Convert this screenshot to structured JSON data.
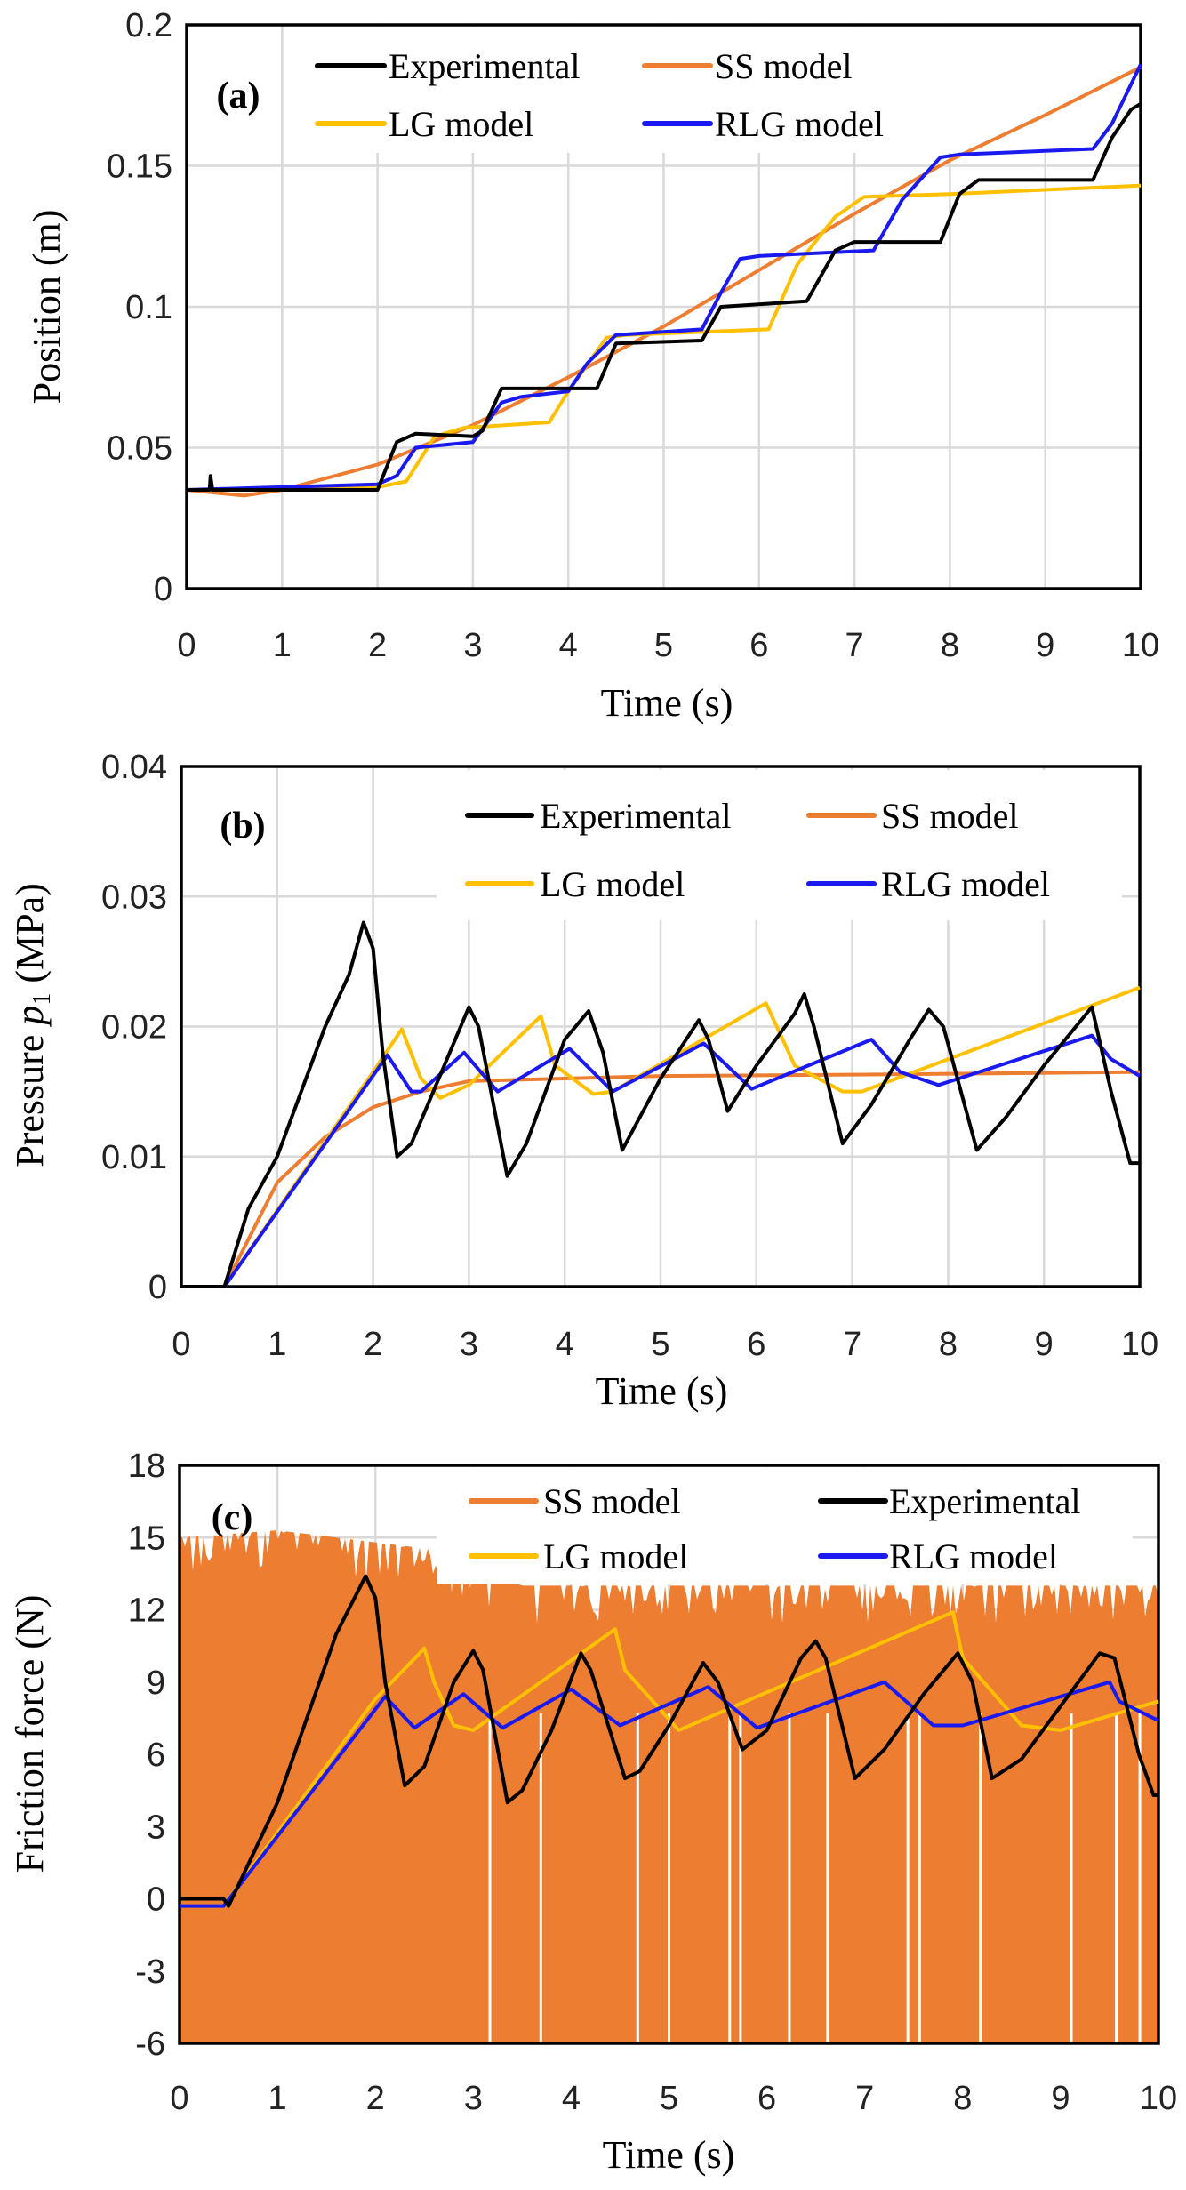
{
  "colors": {
    "Experimental": "#000000",
    "SS model": "#ED7D31",
    "LG model": "#FFC000",
    "RLG model": "#1A1AF0",
    "grid": "#D9D9D9"
  },
  "chart_data": [
    {
      "type": "line",
      "panel_label": "(a)",
      "xlabel": "Time (s)",
      "ylabel": "Position (m)",
      "xlim": [
        0,
        10
      ],
      "ylim": [
        0,
        0.2
      ],
      "xticks": [
        0,
        1,
        2,
        3,
        4,
        5,
        6,
        7,
        8,
        9,
        10
      ],
      "yticks": [
        "0",
        "0.05",
        "0.1",
        "0.15",
        "0.2"
      ],
      "grid": true,
      "legend": [
        "Experimental",
        "SS model",
        "LG model",
        "RLG model"
      ],
      "legend_placement": "top",
      "series": [
        {
          "name": "Experimental",
          "x": [
            0,
            0.24,
            0.25,
            0.27,
            2.0,
            2.2,
            2.4,
            3.0,
            3.1,
            3.3,
            4.3,
            4.5,
            5.4,
            5.6,
            6.5,
            6.8,
            7.0,
            7.9,
            8.1,
            8.3,
            9.5,
            9.7,
            9.9,
            10
          ],
          "y": [
            0.035,
            0.035,
            0.04,
            0.035,
            0.035,
            0.052,
            0.055,
            0.054,
            0.056,
            0.071,
            0.071,
            0.087,
            0.088,
            0.1,
            0.102,
            0.12,
            0.123,
            0.123,
            0.14,
            0.145,
            0.145,
            0.16,
            0.17,
            0.172
          ]
        },
        {
          "name": "SS model",
          "x": [
            0,
            0.6,
            1,
            2,
            3,
            4,
            5,
            6,
            7,
            8,
            9,
            10
          ],
          "y": [
            0.035,
            0.033,
            0.035,
            0.044,
            0.058,
            0.075,
            0.093,
            0.113,
            0.133,
            0.152,
            0.168,
            0.185
          ]
        },
        {
          "name": "LG model",
          "x": [
            0,
            2,
            2.3,
            2.6,
            2.9,
            3.8,
            4.0,
            4.4,
            4.6,
            6.1,
            6.4,
            6.8,
            7.1,
            8,
            10
          ],
          "y": [
            0.035,
            0.036,
            0.038,
            0.054,
            0.057,
            0.059,
            0.07,
            0.089,
            0.09,
            0.092,
            0.115,
            0.132,
            0.139,
            0.14,
            0.143
          ]
        },
        {
          "name": "RLG model",
          "x": [
            0,
            2.0,
            2.2,
            2.4,
            3.0,
            3.3,
            3.5,
            4.0,
            4.2,
            4.5,
            5.4,
            5.6,
            5.8,
            6.0,
            7.2,
            7.5,
            7.9,
            8.1,
            9.5,
            9.7,
            10
          ],
          "y": [
            0.035,
            0.037,
            0.04,
            0.05,
            0.052,
            0.066,
            0.068,
            0.07,
            0.08,
            0.09,
            0.092,
            0.105,
            0.117,
            0.118,
            0.12,
            0.138,
            0.153,
            0.154,
            0.156,
            0.165,
            0.186
          ]
        }
      ]
    },
    {
      "type": "line",
      "panel_label": "(b)",
      "xlabel": "Time (s)",
      "ylabel_parts": [
        "Pressure ",
        "p",
        "1",
        " (MPa)"
      ],
      "xlim": [
        0,
        10
      ],
      "ylim": [
        0,
        0.04
      ],
      "xticks": [
        0,
        1,
        2,
        3,
        4,
        5,
        6,
        7,
        8,
        9,
        10
      ],
      "yticks": [
        "0",
        "0.01",
        "0.02",
        "0.03",
        "0.04"
      ],
      "grid": true,
      "legend": [
        "Experimental",
        "SS model",
        "LG model",
        "RLG model"
      ],
      "legend_placement": "top-right",
      "series": [
        {
          "name": "Experimental",
          "x": [
            0,
            0.45,
            0.7,
            1,
            1.2,
            1.5,
            1.75,
            1.9,
            2.0,
            2.1,
            2.25,
            2.4,
            2.8,
            3.0,
            3.1,
            3.4,
            3.6,
            4.0,
            4.25,
            4.4,
            4.6,
            5.0,
            5.4,
            5.5,
            5.7,
            6.0,
            6.4,
            6.5,
            6.6,
            6.9,
            7.2,
            7.6,
            7.8,
            7.95,
            8.3,
            8.6,
            9.0,
            9.5,
            9.7,
            9.9,
            10
          ],
          "y": [
            0,
            0,
            0.006,
            0.01,
            0.014,
            0.02,
            0.024,
            0.028,
            0.026,
            0.018,
            0.01,
            0.011,
            0.018,
            0.0215,
            0.02,
            0.0085,
            0.011,
            0.019,
            0.0212,
            0.018,
            0.0105,
            0.016,
            0.0205,
            0.019,
            0.0135,
            0.017,
            0.021,
            0.0225,
            0.02,
            0.011,
            0.014,
            0.019,
            0.0213,
            0.02,
            0.0105,
            0.013,
            0.017,
            0.0215,
            0.015,
            0.0095,
            0.0095
          ]
        },
        {
          "name": "SS model",
          "x": [
            0,
            0.45,
            1,
            1.5,
            2,
            2.5,
            3,
            4,
            5,
            7,
            10
          ],
          "y": [
            0,
            0,
            0.008,
            0.0115,
            0.0138,
            0.015,
            0.0158,
            0.016,
            0.0162,
            0.0163,
            0.0165
          ]
        },
        {
          "name": "LG model",
          "x": [
            0,
            0.45,
            2,
            2.3,
            2.5,
            2.7,
            3.0,
            3.75,
            3.9,
            4.3,
            4.5,
            6.1,
            6.4,
            6.9,
            7.1,
            10
          ],
          "y": [
            0,
            0,
            0.0165,
            0.0198,
            0.016,
            0.0145,
            0.0155,
            0.0208,
            0.017,
            0.0148,
            0.015,
            0.0218,
            0.017,
            0.015,
            0.015,
            0.023
          ]
        },
        {
          "name": "RLG model",
          "x": [
            0,
            0.45,
            2.15,
            2.4,
            2.5,
            2.95,
            3.3,
            4.05,
            4.5,
            5.45,
            5.95,
            7.2,
            7.5,
            7.9,
            9.5,
            9.7,
            10
          ],
          "y": [
            0,
            0,
            0.0178,
            0.015,
            0.015,
            0.018,
            0.015,
            0.0183,
            0.015,
            0.0187,
            0.0152,
            0.019,
            0.0165,
            0.0155,
            0.0193,
            0.0175,
            0.0162
          ]
        }
      ]
    },
    {
      "type": "line",
      "panel_label": "(c)",
      "xlabel": "Time (s)",
      "ylabel": "Friction force (N)",
      "xlim": [
        0,
        10
      ],
      "ylim": [
        -6,
        18
      ],
      "xticks": [
        0,
        1,
        2,
        3,
        4,
        5,
        6,
        7,
        8,
        9,
        10
      ],
      "yticks": [
        "-6",
        "-3",
        "0",
        "3",
        "6",
        "9",
        "12",
        "15",
        "18"
      ],
      "grid": true,
      "legend": [
        "SS model",
        "Experimental",
        "LG model",
        "RLG model"
      ],
      "legend_placement": "top-right",
      "ss_band": {
        "name": "SS model",
        "lower": -6,
        "upper_x": [
          0,
          1,
          2,
          2.6,
          3.5,
          10
        ],
        "upper_y": [
          15,
          15.3,
          14.8,
          14.5,
          13,
          13
        ],
        "dropout_x": [
          3.17,
          3.69,
          4.68,
          5.0,
          5.62,
          5.73,
          6.23,
          6.62,
          7.44,
          7.56,
          8.18,
          9.11,
          9.57,
          9.81
        ],
        "dropout_top": 7.7
      },
      "series": [
        {
          "name": "Experimental",
          "x": [
            0,
            0.45,
            0.5,
            1,
            1.3,
            1.6,
            1.9,
            2.0,
            2.1,
            2.3,
            2.5,
            2.8,
            3.0,
            3.1,
            3.35,
            3.5,
            3.8,
            4.1,
            4.2,
            4.55,
            4.7,
            5.0,
            5.35,
            5.5,
            5.75,
            6.0,
            6.35,
            6.5,
            6.6,
            6.9,
            7.2,
            7.6,
            7.95,
            8.1,
            8.3,
            8.6,
            9.0,
            9.4,
            9.55,
            9.8,
            9.95,
            10
          ],
          "y": [
            0,
            0,
            -0.3,
            4,
            7.5,
            11,
            13.4,
            12.5,
            9,
            4.7,
            5.5,
            9,
            10.3,
            9.5,
            4,
            4.5,
            7,
            10.2,
            9.5,
            5,
            5.3,
            7.2,
            9.8,
            9,
            6.2,
            7,
            10,
            10.7,
            10,
            5,
            6.2,
            8.5,
            10.2,
            9,
            5,
            5.8,
            8,
            10.2,
            10,
            6,
            4.3,
            4.3
          ]
        },
        {
          "name": "LG model",
          "x": [
            0,
            0.45,
            2,
            2.5,
            2.6,
            2.8,
            3.0,
            4.45,
            4.55,
            5.1,
            7.9,
            8.0,
            8.6,
            9.0,
            10
          ],
          "y": [
            -0.3,
            -0.3,
            8.3,
            10.4,
            9,
            7.2,
            7,
            11.2,
            9.5,
            7,
            11.9,
            10,
            7.2,
            7,
            8.2
          ]
        },
        {
          "name": "RLG model",
          "x": [
            0,
            0.45,
            2.1,
            2.4,
            2.9,
            3.3,
            4.0,
            4.5,
            5.4,
            5.9,
            7.2,
            7.7,
            8.0,
            9.5,
            9.6,
            10
          ],
          "y": [
            -0.3,
            -0.3,
            8.4,
            7.1,
            8.5,
            7.1,
            8.7,
            7.2,
            8.8,
            7.1,
            9,
            7.2,
            7.2,
            9,
            8.2,
            7.4
          ]
        }
      ]
    }
  ]
}
